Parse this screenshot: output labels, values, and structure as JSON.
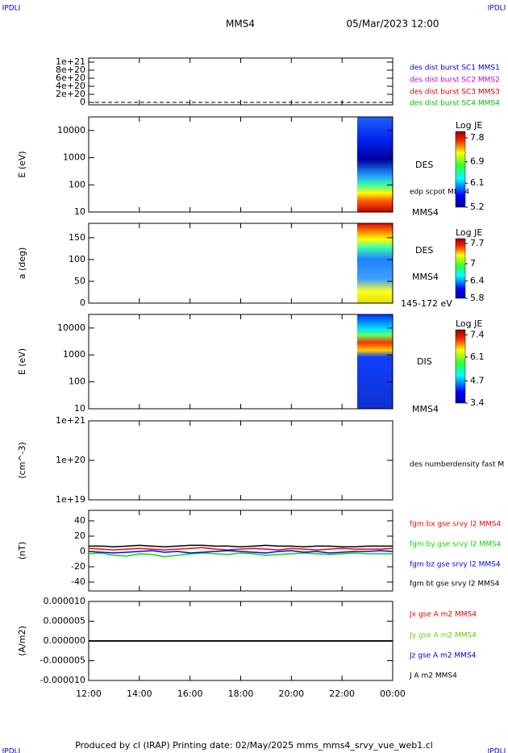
{
  "header": {
    "corner": "IPDLI",
    "mission": "MMS4",
    "date": "05/Mar/2023 12:00"
  },
  "footer": "Produced by cl (IRAP)   Printing date: 02/May/2025   mms_mms4_srvy_vue_web1.cl",
  "time_axis": {
    "xlim": [
      12,
      24
    ],
    "xticks": [
      {
        "value": 12,
        "label": "12:00"
      },
      {
        "value": 14,
        "label": "14:00"
      },
      {
        "value": 16,
        "label": "16:00"
      },
      {
        "value": 18,
        "label": "18:00"
      },
      {
        "value": 20,
        "label": "20:00"
      },
      {
        "value": 22,
        "label": "22:00"
      },
      {
        "value": 24,
        "label": "00:00"
      }
    ]
  },
  "chart_data": [
    {
      "type": "line",
      "ylim": [
        -6e+19,
        1.1e+21
      ],
      "yticks": [
        {
          "value": 0,
          "label": "0"
        },
        {
          "value": 2e+20,
          "label": "2e+20"
        },
        {
          "value": 4e+20,
          "label": "4e+20"
        },
        {
          "value": 6e+20,
          "label": "6e+20"
        },
        {
          "value": 8e+20,
          "label": "8e+20"
        },
        {
          "value": 1e+21,
          "label": "1e+21"
        }
      ],
      "reference_line": 0,
      "legend": [
        {
          "name": "des dist burst SC1 MMS1",
          "color": "#0000cc"
        },
        {
          "name": "des dist burst SC2 MMS2",
          "color": "#cc00cc"
        },
        {
          "name": "des dist burst SC3 MMS3",
          "color": "#cc0000"
        },
        {
          "name": "des dist burst SC4 MMS4",
          "color": "#00bb00"
        }
      ]
    },
    {
      "type": "heatmap",
      "ylabel": "E (eV)",
      "log": true,
      "ylim": [
        10,
        31623
      ],
      "yticks": [
        10,
        100,
        1000,
        10000
      ],
      "annotations": [
        "DES",
        "edp scpot MMS4",
        "MMS4"
      ],
      "colorbar": {
        "title": "Log JE",
        "clim": [
          5.2,
          8.04
        ],
        "ticks": [
          7.8,
          6.9,
          6.1,
          5.2
        ]
      }
    },
    {
      "type": "heatmap",
      "ylabel": "a (deg)",
      "log": false,
      "ylim": [
        0,
        183
      ],
      "yticks": [
        0,
        50,
        100,
        150
      ],
      "annotations": [
        "DES",
        "MMS4",
        "145-172 eV"
      ],
      "colorbar": {
        "title": "Log JE",
        "clim": [
          5.8,
          7.87
        ],
        "ticks": [
          7.7,
          7.0,
          6.4,
          5.8
        ]
      }
    },
    {
      "type": "heatmap",
      "ylabel": "E (eV)",
      "log": true,
      "ylim": [
        10,
        32000
      ],
      "yticks": [
        10,
        100,
        1000,
        10000
      ],
      "annotations": [
        "DIS",
        "MMS4"
      ],
      "colorbar": {
        "title": "Log JE",
        "clim": [
          3.4,
          7.7
        ],
        "ticks": [
          7.4,
          6.1,
          4.7,
          3.4
        ]
      }
    },
    {
      "type": "line",
      "ylabel": "(cm^-3)",
      "log": true,
      "ylim": [
        1e+19,
        1e+21
      ],
      "yticks": [
        {
          "value": 1e+19,
          "label": "1e+19"
        },
        {
          "value": 1e+20,
          "label": "1e+20"
        },
        {
          "value": 1e+21,
          "label": "1e+21"
        }
      ],
      "legend": [
        {
          "name": "des numberdensity fast M",
          "color": "#000000"
        }
      ]
    },
    {
      "type": "line",
      "ylabel": "(nT)",
      "log": false,
      "ylim": [
        -51.6,
        53.7
      ],
      "yticks": [
        -40,
        -20,
        0,
        20,
        40
      ],
      "x": [
        12,
        12.5,
        13,
        13.5,
        14,
        14.5,
        15,
        15.5,
        16,
        16.5,
        17,
        17.5,
        18,
        18.5,
        19,
        19.5,
        20,
        20.5,
        21,
        21.5,
        22,
        22.5,
        23,
        23.5,
        24
      ],
      "series": [
        {
          "name": "fgm bx gse srvy l2 MMS4",
          "color": "#ff0000",
          "values": [
            4,
            3,
            2,
            3,
            4,
            3,
            2,
            3,
            4,
            5,
            3,
            2,
            3,
            4,
            3,
            2,
            4,
            3,
            2,
            3,
            4,
            3,
            3,
            3,
            4
          ]
        },
        {
          "name": "fgm by gse srvy l2 MMS4",
          "color": "#00dd00",
          "values": [
            -3,
            -2,
            -5,
            -6,
            -3,
            -4,
            -7,
            -5,
            -3,
            -2,
            -3,
            -4,
            -2,
            -3,
            -5,
            -4,
            -3,
            -2,
            -3,
            -4,
            -3,
            -2,
            -3,
            -3,
            -3
          ]
        },
        {
          "name": "fgm bz gse srvy l2 MMS4",
          "color": "#0000ff",
          "values": [
            0,
            -1,
            -2,
            -1,
            0,
            1,
            -1,
            0,
            -2,
            -1,
            0,
            1,
            0,
            -1,
            -2,
            0,
            1,
            -1,
            0,
            -2,
            -1,
            0,
            0,
            1,
            0
          ]
        },
        {
          "name": "fgm bt gse srvy l2 MMS4",
          "color": "#000000",
          "values": [
            7,
            7,
            6,
            7,
            8,
            7,
            6,
            7,
            8,
            8,
            7,
            7,
            6,
            7,
            8,
            7,
            7,
            6,
            7,
            7,
            6,
            6,
            7,
            7,
            7
          ]
        }
      ]
    },
    {
      "type": "line",
      "ylabel": "(A/m2)",
      "log": false,
      "ylim": [
        -1e-05,
        1e-05
      ],
      "yticks": [
        {
          "value": -1e-05,
          "label": "-0.000010"
        },
        {
          "value": -5e-06,
          "label": "-0.000005"
        },
        {
          "value": 0,
          "label": "0.000000"
        },
        {
          "value": 5e-06,
          "label": "0.000005"
        },
        {
          "value": 1e-05,
          "label": "0.000010"
        }
      ],
      "x": [
        12,
        24
      ],
      "series": [
        {
          "name": "Jx gse A m2 MMS4",
          "color": "#dd0000",
          "values": [
            0,
            0
          ]
        },
        {
          "name": "Jy gse A m2 MMS4",
          "color": "#66cc00",
          "values": [
            0,
            0
          ]
        },
        {
          "name": "Jz gse A m2 MMS4",
          "color": "#0000cc",
          "values": [
            0,
            0
          ]
        },
        {
          "name": "J A m2 MMS4",
          "color": "#000000",
          "values": [
            0,
            0
          ]
        }
      ]
    }
  ]
}
